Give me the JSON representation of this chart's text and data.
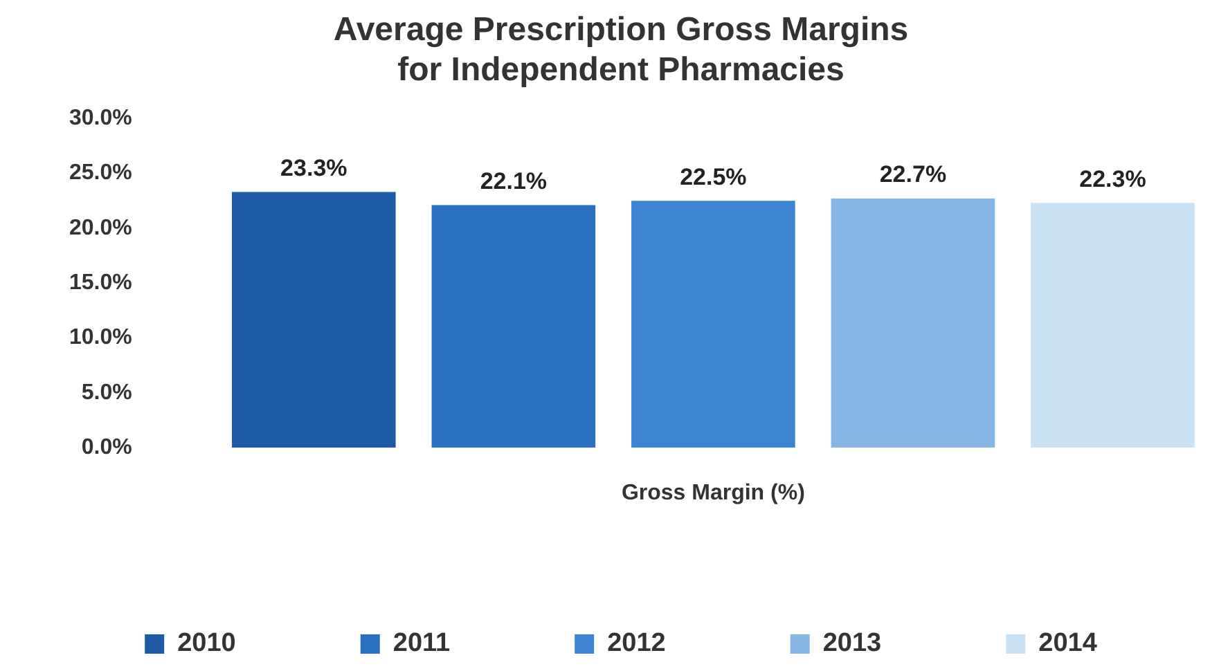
{
  "chart_data": {
    "type": "bar",
    "title": "Average Prescription Gross Margins for Independent Pharmacies",
    "categories": [
      null
    ],
    "xlabel": "Gross Margin (%)",
    "series": [
      {
        "name": "2010",
        "color": "#1f5aa6",
        "values": [
          23.3
        ],
        "value_labels": [
          "23.3%"
        ]
      },
      {
        "name": "2011",
        "color": "#2b6fc0",
        "values": [
          22.1
        ],
        "value_labels": [
          "22.1%"
        ]
      },
      {
        "name": "2012",
        "color": "#3d85d2",
        "values": [
          22.5
        ],
        "value_labels": [
          "22.5%"
        ]
      },
      {
        "name": "2013",
        "color": "#86b6e6",
        "values": [
          22.7
        ],
        "value_labels": [
          "22.7%"
        ]
      },
      {
        "name": "2014",
        "color": "#c9e2f6",
        "values": [
          22.3
        ],
        "value_labels": [
          "22.3%"
        ]
      }
    ],
    "ylim": [
      0,
      30
    ],
    "yticks": [
      {
        "value": 0,
        "label": "0.0%"
      },
      {
        "value": 5,
        "label": "5.0%"
      },
      {
        "value": 10,
        "label": "10.0%"
      },
      {
        "value": 15,
        "label": "15.0%"
      },
      {
        "value": 20,
        "label": "20.0%"
      },
      {
        "value": 25,
        "label": "25.0%"
      },
      {
        "value": 30,
        "label": "30.0%"
      }
    ],
    "legend": "bottom"
  }
}
